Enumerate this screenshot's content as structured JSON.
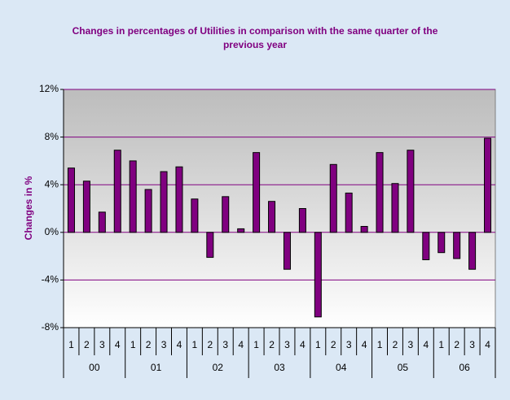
{
  "chart_data": {
    "type": "bar",
    "title": "Changes in percentages of Utilities in comparison with the same quarter of the previous year",
    "y_label": "Changes in %",
    "categories": [
      "1",
      "2",
      "3",
      "4",
      "1",
      "2",
      "3",
      "4",
      "1",
      "2",
      "3",
      "4",
      "1",
      "2",
      "3",
      "4",
      "1",
      "2",
      "3",
      "4",
      "1",
      "2",
      "3",
      "4",
      "1",
      "2",
      "3",
      "4"
    ],
    "groups": [
      "00",
      "01",
      "02",
      "03",
      "04",
      "05",
      "06"
    ],
    "values": [
      5.4,
      4.3,
      1.7,
      6.9,
      6.0,
      3.6,
      5.1,
      5.5,
      2.8,
      -2.1,
      3.0,
      0.3,
      6.7,
      2.6,
      -3.1,
      2.0,
      -7.1,
      5.7,
      3.3,
      0.5,
      6.7,
      4.1,
      6.9,
      -2.3,
      -1.7,
      -2.2,
      -3.1,
      7.9
    ],
    "color": "#800080",
    "ylim": [
      -8,
      12
    ],
    "yticks": [
      {
        "value": -8,
        "label": "-8%"
      },
      {
        "value": -4,
        "label": "-4%"
      },
      {
        "value": 0,
        "label": "0%"
      },
      {
        "value": 4,
        "label": "4%"
      },
      {
        "value": 8,
        "label": "8%"
      },
      {
        "value": 12,
        "label": "12%"
      }
    ],
    "grid": true
  }
}
